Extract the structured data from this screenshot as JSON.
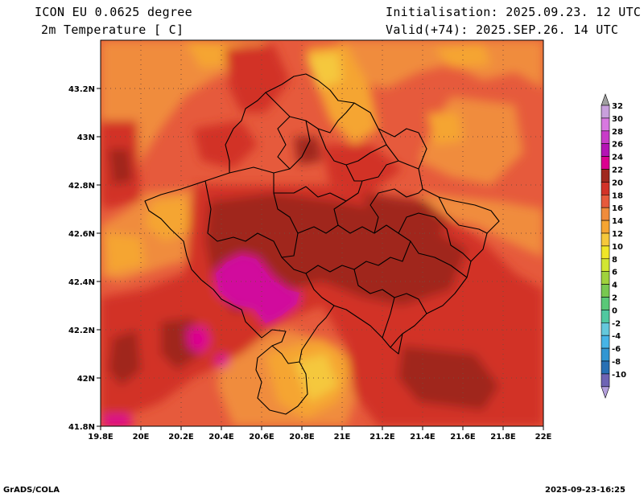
{
  "header": {
    "model_title": "ICON EU 0.0625 degree",
    "variable": "2m Temperature [ C]",
    "init": "Initialisation: 2025.09.23. 12 UTC",
    "valid": "Valid(+74): 2025.SEP.26. 14 UTC"
  },
  "axes": {
    "lat_ticks": [
      "43.2N",
      "43N",
      "42.8N",
      "42.6N",
      "42.4N",
      "42.2N",
      "42N",
      "41.8N"
    ],
    "lon_ticks": [
      "19.8E",
      "20E",
      "20.2E",
      "20.4E",
      "20.6E",
      "20.8E",
      "21E",
      "21.2E",
      "21.4E",
      "21.6E",
      "21.8E",
      "22E"
    ]
  },
  "colorbar": {
    "levels": [
      {
        "label": "32",
        "color": "#c8a0dc"
      },
      {
        "label": "30",
        "color": "#d878e0"
      },
      {
        "label": "28",
        "color": "#c83cc8"
      },
      {
        "label": "26",
        "color": "#b414b4"
      },
      {
        "label": "24",
        "color": "#dc0090"
      },
      {
        "label": "22",
        "color": "#a0281e"
      },
      {
        "label": "20",
        "color": "#d23228"
      },
      {
        "label": "18",
        "color": "#e65a3c"
      },
      {
        "label": "16",
        "color": "#f08c3c"
      },
      {
        "label": "14",
        "color": "#f5a532"
      },
      {
        "label": "12",
        "color": "#f5c83c"
      },
      {
        "label": "10",
        "color": "#f0e628"
      },
      {
        "label": "8",
        "color": "#d2e632"
      },
      {
        "label": "6",
        "color": "#a0d23c"
      },
      {
        "label": "4",
        "color": "#78c850"
      },
      {
        "label": "2",
        "color": "#5ac878"
      },
      {
        "label": "0",
        "color": "#50c8a0"
      },
      {
        "label": "-2",
        "color": "#64c8dc"
      },
      {
        "label": "-4",
        "color": "#46b4e6"
      },
      {
        "label": "-6",
        "color": "#3296d2"
      },
      {
        "label": "-8",
        "color": "#2870b4"
      },
      {
        "label": "-10",
        "color": "#6e64b4"
      }
    ],
    "top_arrow_color": "#a0a0a0",
    "bottom_arrow_color": "#b4a0dc"
  },
  "footer": {
    "left": "GrADS/COLA",
    "right": "2025-09-23-16:25"
  }
}
